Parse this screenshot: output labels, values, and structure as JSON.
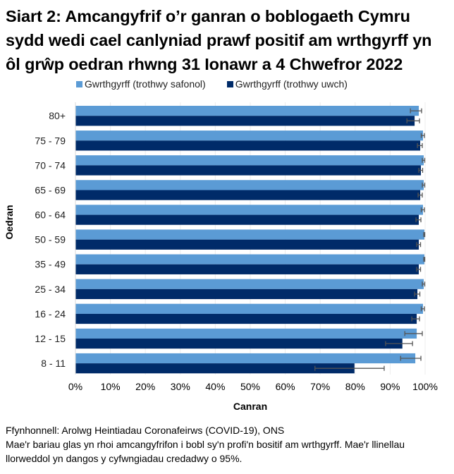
{
  "title": "Siart 2: Amcangyfrif o’r ganran o boblogaeth Cymru sydd wedi cael canlyniad prawf positif am wrthgyrff yn ôl grŵp oedran rhwng 31 Ionawr a 4 Chwefror 2022",
  "legend": [
    {
      "label": "Gwrthgyrff (trothwy safonol)",
      "color": "#5B9BD5"
    },
    {
      "label": "Gwrthgyrff (trothwy uwch)",
      "color": "#002B69"
    }
  ],
  "axes": {
    "y_title": "Oedran",
    "x_title": "Canran",
    "x_ticks": [
      "0%",
      "10%",
      "20%",
      "30%",
      "40%",
      "50%",
      "60%",
      "70%",
      "80%",
      "90%",
      "100%"
    ]
  },
  "footer": {
    "source": "Ffynhonnell: Arolwg Heintiadau Coronafeirws (COVID-19), ONS",
    "note": "Mae'r bariau glas yn rhoi amcangyfrifon i bobl sy'n profi'n bositif am wrthgyrff. Mae'r llinellau llorweddol yn dangos y cyfwngiadau credadwy o 95%."
  },
  "chart_data": {
    "type": "bar",
    "orientation": "horizontal",
    "title": "Siart 2: Amcangyfrif o’r ganran o boblogaeth Cymru sydd wedi cael canlyniad prawf positif am wrthgyrff yn ôl grŵp oedran rhwng 31 Ionawr a 4 Chwefror 2022",
    "xlabel": "Canran",
    "ylabel": "Oedran",
    "xlim": [
      0,
      100
    ],
    "x_unit": "%",
    "grid": true,
    "legend_position": "top",
    "categories": [
      "80+",
      "75 - 79",
      "70 - 74",
      "65 - 69",
      "60 - 64",
      "50 - 59",
      "35 - 49",
      "25 - 34",
      "16 - 24",
      "12 - 15",
      "8 - 11"
    ],
    "series": [
      {
        "name": "Gwrthgyrff (trothwy safonol)",
        "color": "#5B9BD5",
        "values": [
          98.2,
          99.4,
          99.6,
          99.6,
          99.4,
          99.8,
          99.8,
          99.6,
          99.4,
          97.6,
          97.2
        ],
        "ci_lower": [
          95.8,
          98.9,
          99.2,
          99.2,
          98.9,
          99.6,
          99.6,
          99.2,
          98.9,
          94.2,
          93.0
        ],
        "ci_upper": [
          99.0,
          99.8,
          99.9,
          99.9,
          99.8,
          99.9,
          99.9,
          99.9,
          99.8,
          99.2,
          98.8
        ]
      },
      {
        "name": "Gwrthgyrff (trothwy uwch)",
        "color": "#002B69",
        "values": [
          97.0,
          98.6,
          98.8,
          98.6,
          98.2,
          98.2,
          98.2,
          97.8,
          97.6,
          93.5,
          79.8
        ],
        "ci_lower": [
          94.8,
          97.8,
          98.2,
          98.0,
          97.4,
          97.6,
          97.6,
          97.0,
          96.2,
          88.7,
          68.5
        ],
        "ci_upper": [
          98.4,
          99.2,
          99.3,
          99.2,
          98.8,
          98.7,
          98.7,
          98.5,
          98.4,
          96.4,
          88.3
        ]
      }
    ],
    "annotations": [
      "Error bars show 95% credible intervals"
    ]
  }
}
